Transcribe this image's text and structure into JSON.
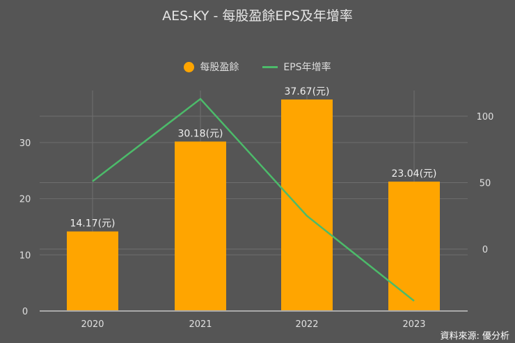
{
  "chart_data": {
    "type": "bar+line",
    "title": "AES-KY - 每股盈餘EPS及年增率",
    "categories": [
      "2020",
      "2021",
      "2022",
      "2023"
    ],
    "series": [
      {
        "name": "每股盈餘",
        "type": "bar",
        "axis": "left",
        "color": "#FFA500",
        "values": [
          14.17,
          30.18,
          37.67,
          23.04
        ],
        "labels": [
          "14.17(元)",
          "30.18(元)",
          "37.67(元)",
          "23.04(元)"
        ]
      },
      {
        "name": "EPS年增率",
        "type": "line",
        "axis": "right",
        "color": "#4CBB6A",
        "values": [
          51,
          113,
          25,
          -39
        ]
      }
    ],
    "left_axis": {
      "ticks": [
        0,
        10,
        20,
        30
      ],
      "ylim": [
        0,
        39
      ]
    },
    "right_axis": {
      "ticks": [
        0,
        50,
        100
      ],
      "ylim": [
        -47,
        120
      ]
    },
    "legend_position": "top",
    "grid": true,
    "xlabel": "",
    "ylabel": ""
  },
  "title": "AES-KY - 每股盈餘EPS及年增率",
  "legend": [
    {
      "label": "每股盈餘",
      "icon": "circle-marker"
    },
    {
      "label": "EPS年增率",
      "icon": "line-marker"
    }
  ],
  "source": "資料來源: 優分析",
  "colors": {
    "background": "#555555",
    "bar": "#FFA500",
    "line": "#4CBB6A",
    "grid": "#6e6e6e",
    "text": "#e0e0e0"
  }
}
